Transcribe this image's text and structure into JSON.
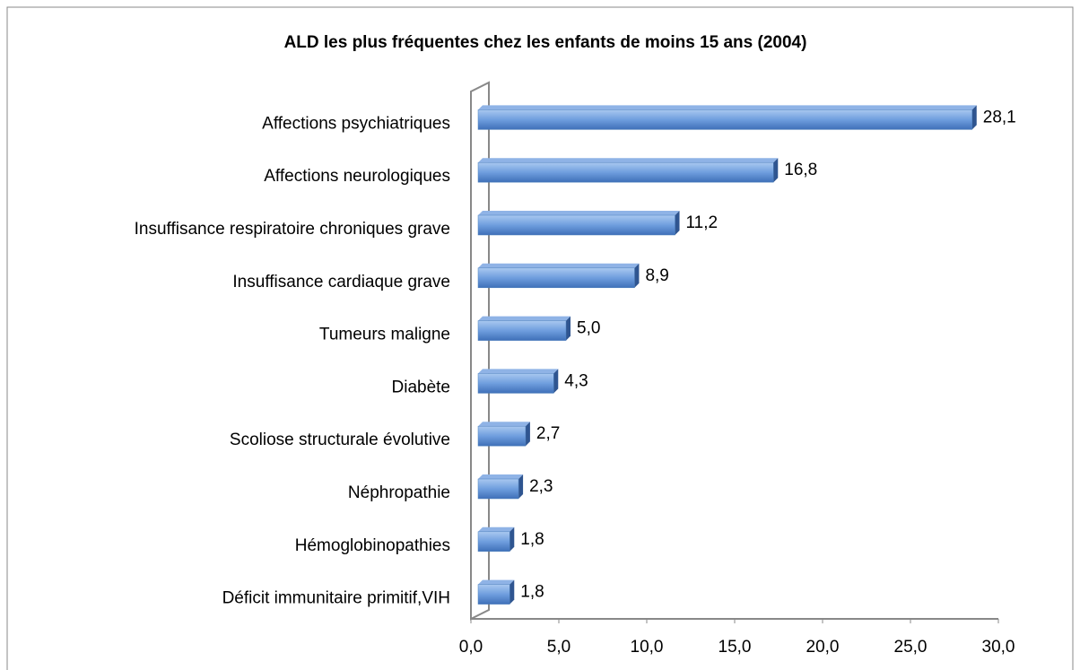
{
  "chart_data": {
    "type": "bar",
    "orientation": "horizontal",
    "title": "ALD les plus fréquentes chez les enfants de moins 15 ans (2004)",
    "categories": [
      "Affections psychiatriques",
      "Affections neurologiques",
      "Insuffisance respiratoire chroniques grave",
      "Insuffisance cardiaque grave",
      "Tumeurs maligne",
      "Diabète",
      "Scoliose structurale évolutive",
      "Néphropathie",
      "Hémoglobinopathies",
      "Déficit immunitaire primitif,VIH"
    ],
    "values": [
      28.1,
      16.8,
      11.2,
      8.9,
      5.0,
      4.3,
      2.7,
      2.3,
      1.8,
      1.8
    ],
    "value_labels": [
      "28,1",
      "16,8",
      "11,2",
      "8,9",
      "5,0",
      "4,3",
      "2,7",
      "2,3",
      "1,8",
      "1,8"
    ],
    "color": "#4f81bd",
    "xlim": [
      0,
      30
    ],
    "xticks": [
      {
        "value": 0,
        "label": "0,0"
      },
      {
        "value": 5,
        "label": "5,0"
      },
      {
        "value": 10,
        "label": "10,0"
      },
      {
        "value": 15,
        "label": "15,0"
      },
      {
        "value": 20,
        "label": "20,0"
      },
      {
        "value": 25,
        "label": "25,0"
      },
      {
        "value": 30,
        "label": "30,0"
      }
    ],
    "grid": false
  }
}
